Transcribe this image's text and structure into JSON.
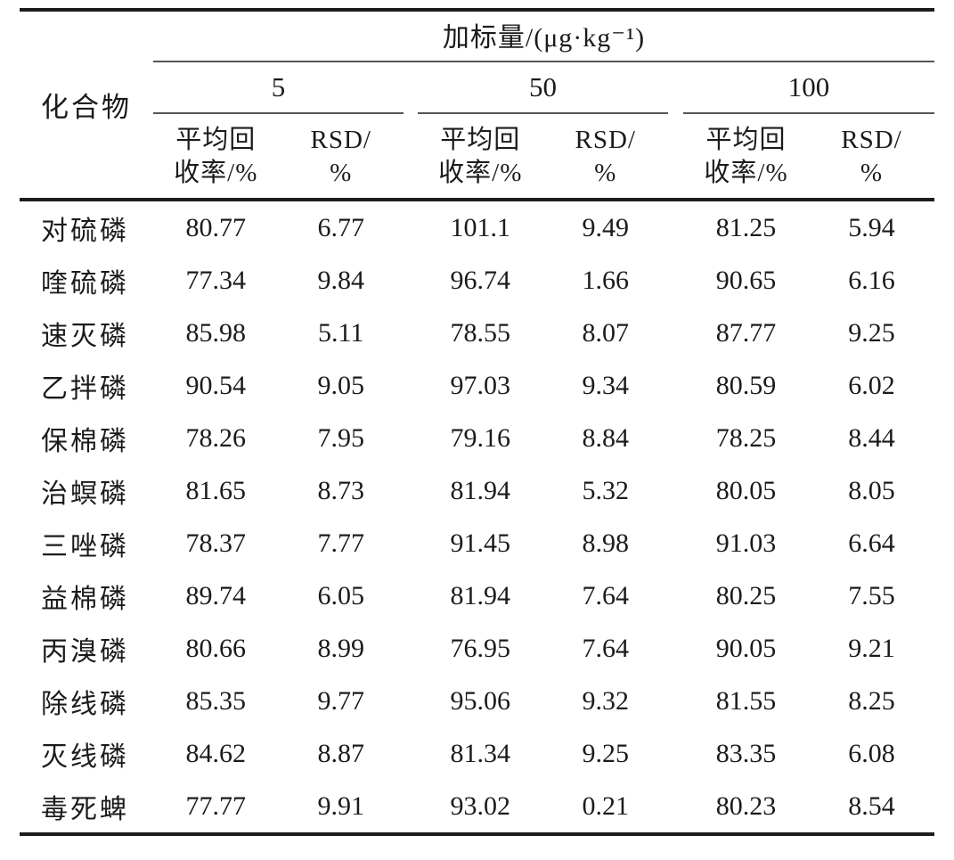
{
  "table": {
    "compound_header": "化合物",
    "spike_header": "加标量/(μg·kg⁻¹)",
    "levels": [
      "5",
      "50",
      "100"
    ],
    "columns": {
      "recovery_line1": "平均回",
      "recovery_line2": "收率/%",
      "rsd_line1": "RSD/",
      "rsd_line2": "%"
    },
    "rows": [
      {
        "compound": "对硫磷",
        "values": [
          "80.77",
          "6.77",
          "101.1",
          "9.49",
          "81.25",
          "5.94"
        ]
      },
      {
        "compound": "喹硫磷",
        "values": [
          "77.34",
          "9.84",
          "96.74",
          "1.66",
          "90.65",
          "6.16"
        ]
      },
      {
        "compound": "速灭磷",
        "values": [
          "85.98",
          "5.11",
          "78.55",
          "8.07",
          "87.77",
          "9.25"
        ]
      },
      {
        "compound": "乙拌磷",
        "values": [
          "90.54",
          "9.05",
          "97.03",
          "9.34",
          "80.59",
          "6.02"
        ]
      },
      {
        "compound": "保棉磷",
        "values": [
          "78.26",
          "7.95",
          "79.16",
          "8.84",
          "78.25",
          "8.44"
        ]
      },
      {
        "compound": "治螟磷",
        "values": [
          "81.65",
          "8.73",
          "81.94",
          "5.32",
          "80.05",
          "8.05"
        ]
      },
      {
        "compound": "三唑磷",
        "values": [
          "78.37",
          "7.77",
          "91.45",
          "8.98",
          "91.03",
          "6.64"
        ]
      },
      {
        "compound": "益棉磷",
        "values": [
          "89.74",
          "6.05",
          "81.94",
          "7.64",
          "80.25",
          "7.55"
        ]
      },
      {
        "compound": "丙溴磷",
        "values": [
          "80.66",
          "8.99",
          "76.95",
          "7.64",
          "90.05",
          "9.21"
        ]
      },
      {
        "compound": "除线磷",
        "values": [
          "85.35",
          "9.77",
          "95.06",
          "9.32",
          "81.55",
          "8.25"
        ]
      },
      {
        "compound": "灭线磷",
        "values": [
          "84.62",
          "8.87",
          "81.34",
          "9.25",
          "83.35",
          "6.08"
        ]
      },
      {
        "compound": "毒死蜱",
        "values": [
          "77.77",
          "9.91",
          "93.02",
          "0.21",
          "80.23",
          "8.54"
        ]
      }
    ]
  }
}
